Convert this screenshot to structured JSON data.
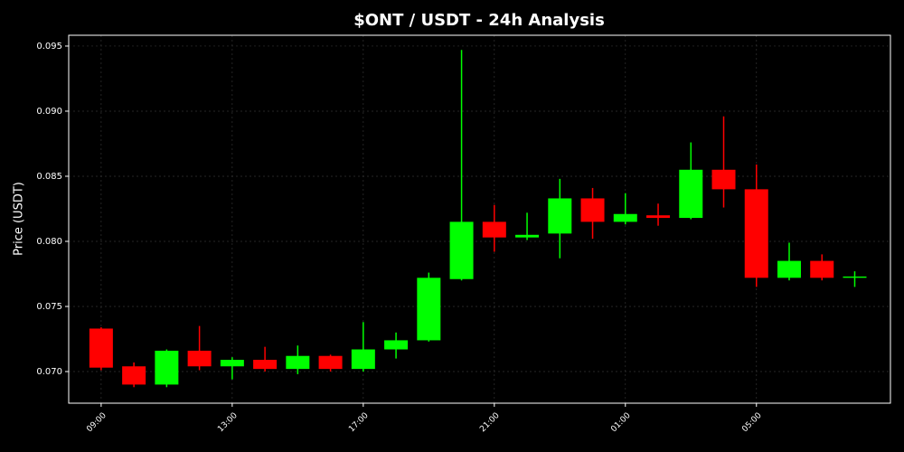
{
  "chart_data": {
    "type": "candlestick",
    "title": "$ONT / USDT - 24h Analysis",
    "y_label": "Price (USDT)",
    "categories": [
      "09:00",
      null,
      null,
      null,
      "13:00",
      null,
      null,
      null,
      "17:00",
      null,
      null,
      null,
      "21:00",
      null,
      null,
      null,
      "01:00",
      null,
      null,
      null,
      "05:00",
      null,
      null,
      null
    ],
    "open": [
      0.0733,
      0.0704,
      0.069,
      0.0716,
      0.0704,
      0.0709,
      0.0702,
      0.0712,
      0.0702,
      0.0717,
      0.0724,
      0.0771,
      0.0815,
      0.0803,
      0.0806,
      0.0833,
      0.0815,
      0.082,
      0.0818,
      0.0855,
      0.084,
      0.0772,
      0.0785,
      0.0772
    ],
    "high": [
      0.0734,
      0.0707,
      0.0717,
      0.0735,
      0.0711,
      0.0719,
      0.072,
      0.0713,
      0.0738,
      0.073,
      0.0776,
      0.0947,
      0.0828,
      0.0822,
      0.0848,
      0.0841,
      0.0837,
      0.0829,
      0.0876,
      0.0896,
      0.0859,
      0.0799,
      0.079,
      0.0777
    ],
    "low": [
      0.0701,
      0.0688,
      0.0688,
      0.0701,
      0.0694,
      0.07,
      0.0698,
      0.07,
      0.07,
      0.071,
      0.0723,
      0.077,
      0.0792,
      0.0801,
      0.0787,
      0.0802,
      0.0813,
      0.0812,
      0.0817,
      0.0826,
      0.0765,
      0.077,
      0.077,
      0.0765
    ],
    "close": [
      0.0703,
      0.069,
      0.0716,
      0.0704,
      0.0709,
      0.0702,
      0.0712,
      0.0702,
      0.0717,
      0.0724,
      0.0772,
      0.0815,
      0.0803,
      0.0805,
      0.0833,
      0.0815,
      0.0821,
      0.0818,
      0.0855,
      0.084,
      0.0772,
      0.0785,
      0.0772,
      0.0773
    ],
    "up_color": "#00ff00",
    "down_color": "#ff0000",
    "ylim": [
      0.06757,
      0.09583
    ],
    "yticks": [
      {
        "value": 0.07,
        "label": "0.070"
      },
      0.075,
      {
        "value": 0.08,
        "label": "0.080"
      },
      0.085,
      {
        "value": 0.09,
        "label": "0.090"
      },
      0.095
    ],
    "grid": true
  }
}
